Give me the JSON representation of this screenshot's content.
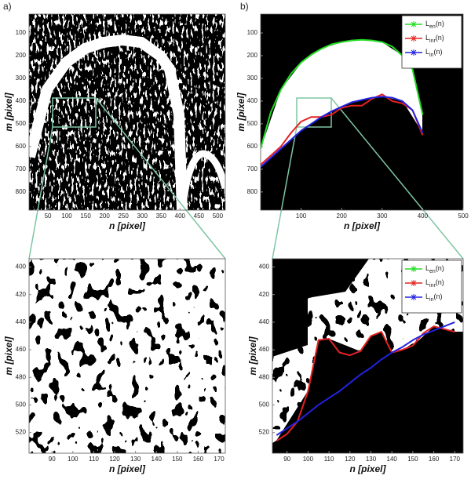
{
  "chart_data": [
    {
      "type": "image",
      "label": "a)",
      "x_label": "n [pixel]",
      "y_label": "m [pixel]",
      "xlim": [
        0,
        520
      ],
      "ylim": [
        17,
        880
      ],
      "y_reversed": true,
      "xticks": [
        50,
        100,
        150,
        200,
        250,
        300,
        350,
        400,
        450,
        500
      ],
      "yticks": [
        100,
        200,
        300,
        400,
        500,
        600,
        700,
        800
      ]
    },
    {
      "type": "line",
      "label": "b)",
      "x_label": "n [pixel]",
      "y_label": "m [pixel]",
      "xlim": [
        0,
        500
      ],
      "ylim": [
        17,
        880
      ],
      "y_reversed": true,
      "xticks": [
        100,
        200,
        300,
        400,
        500
      ],
      "yticks": [
        100,
        200,
        300,
        400,
        500,
        600,
        700,
        800
      ],
      "legend": "upper right",
      "x": [
        0,
        25,
        50,
        75,
        100,
        125,
        150,
        175,
        200,
        225,
        250,
        275,
        300,
        325,
        350,
        375,
        400
      ],
      "series": [
        {
          "name": "L",
          "name_sub": "en",
          "name_tail": "(n)",
          "color": "#22dd22",
          "values": [
            610,
            450,
            350,
            280,
            230,
            195,
            170,
            150,
            140,
            133,
            130,
            133,
            140,
            160,
            200,
            260,
            460
          ]
        },
        {
          "name": "L",
          "name_sub": "inr",
          "name_tail": "(n)",
          "color": "#e52222",
          "values": [
            680,
            640,
            600,
            540,
            490,
            470,
            470,
            460,
            430,
            420,
            420,
            390,
            370,
            400,
            410,
            440,
            550
          ]
        },
        {
          "name": "L",
          "name_sub": "in",
          "name_tail": "(n)",
          "color": "#2222e0",
          "values": [
            690,
            650,
            610,
            570,
            530,
            500,
            470,
            445,
            425,
            405,
            395,
            385,
            380,
            385,
            400,
            440,
            540
          ]
        }
      ]
    },
    {
      "type": "image",
      "x_label": "n [pixel]",
      "y_label": "m [pixel]",
      "xlim": [
        79,
        173
      ],
      "ylim": [
        394,
        535
      ],
      "y_reversed": true,
      "xticks": [
        90,
        100,
        110,
        120,
        130,
        140,
        150,
        160,
        170
      ],
      "yticks": [
        400,
        420,
        440,
        460,
        480,
        500,
        520
      ]
    },
    {
      "type": "line",
      "x_label": "n [pixel]",
      "y_label": "m [pixel]",
      "xlim": [
        83,
        174
      ],
      "ylim": [
        394,
        535
      ],
      "y_reversed": true,
      "xticks": [
        90,
        100,
        110,
        120,
        130,
        140,
        150,
        160,
        170
      ],
      "yticks": [
        400,
        420,
        440,
        460,
        480,
        500,
        520
      ],
      "legend": "upper right",
      "x": [
        85,
        90,
        95,
        100,
        105,
        110,
        115,
        120,
        125,
        130,
        135,
        140,
        145,
        150,
        155,
        160,
        165,
        170
      ],
      "series": [
        {
          "name": "L",
          "name_sub": "en",
          "name_tail": "(n)",
          "color": "#22dd22",
          "values": [
            null,
            null,
            null,
            null,
            null,
            null,
            null,
            null,
            null,
            null,
            null,
            null,
            null,
            null,
            null,
            null,
            null,
            null
          ]
        },
        {
          "name": "L",
          "name_sub": "inr",
          "name_tail": "(n)",
          "color": "#e52222",
          "values": [
            526,
            521,
            512,
            490,
            453,
            452,
            462,
            464,
            461,
            450,
            447,
            462,
            460,
            457,
            448,
            443,
            445,
            447
          ]
        },
        {
          "name": "L",
          "name_sub": "in",
          "name_tail": "(n)",
          "color": "#2222e0",
          "values": [
            522,
            517,
            512,
            506,
            500,
            495,
            490,
            484,
            478,
            473,
            467,
            462,
            458,
            453,
            449,
            446,
            443,
            440
          ]
        }
      ]
    }
  ]
}
